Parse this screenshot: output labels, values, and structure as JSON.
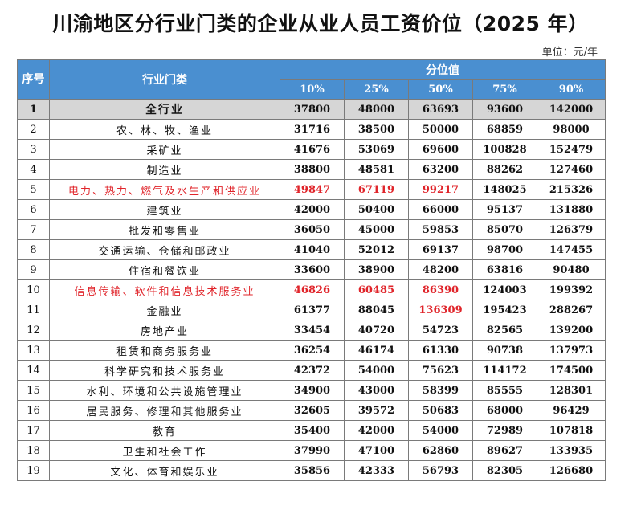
{
  "title": "川渝地区分行业门类的企业从业人员工资价位（2025 年）",
  "unit": "单位：元/年",
  "header": {
    "seq": "序号",
    "industry": "行业门类",
    "percentile_group": "分位值",
    "percentiles": [
      "10%",
      "25%",
      "50%",
      "75%",
      "90%"
    ]
  },
  "rows": [
    {
      "no": "1",
      "name": "全行业",
      "values": [
        "37800",
        "48000",
        "63693",
        "93600",
        "142000"
      ],
      "highlight": "total"
    },
    {
      "no": "2",
      "name": "农、林、牧、渔业",
      "values": [
        "31716",
        "38500",
        "50000",
        "68859",
        "98000"
      ]
    },
    {
      "no": "3",
      "name": "采矿业",
      "values": [
        "41676",
        "53069",
        "69600",
        "100828",
        "152479"
      ]
    },
    {
      "no": "4",
      "name": "制造业",
      "values": [
        "38800",
        "48581",
        "63200",
        "88262",
        "127460"
      ]
    },
    {
      "no": "5",
      "name": "电力、热力、燃气及水生产和供应业",
      "values": [
        "49847",
        "67119",
        "99217",
        "148025",
        "215326"
      ],
      "red_name": true,
      "red_values": [
        0,
        1,
        2
      ]
    },
    {
      "no": "6",
      "name": "建筑业",
      "values": [
        "42000",
        "50400",
        "66000",
        "95137",
        "131880"
      ]
    },
    {
      "no": "7",
      "name": "批发和零售业",
      "values": [
        "36050",
        "45000",
        "59853",
        "85070",
        "126379"
      ]
    },
    {
      "no": "8",
      "name": "交通运输、仓储和邮政业",
      "values": [
        "41040",
        "52012",
        "69137",
        "98700",
        "147455"
      ]
    },
    {
      "no": "9",
      "name": "住宿和餐饮业",
      "values": [
        "33600",
        "38900",
        "48200",
        "63816",
        "90480"
      ]
    },
    {
      "no": "10",
      "name": "信息传输、软件和信息技术服务业",
      "values": [
        "46826",
        "60485",
        "86390",
        "124003",
        "199392"
      ],
      "red_name": true,
      "red_values": [
        0,
        1,
        2
      ]
    },
    {
      "no": "11",
      "name": "金融业",
      "values": [
        "61377",
        "88045",
        "136309",
        "195423",
        "288267"
      ],
      "red_values": [
        2
      ]
    },
    {
      "no": "12",
      "name": "房地产业",
      "values": [
        "33454",
        "40720",
        "54723",
        "82565",
        "139200"
      ]
    },
    {
      "no": "13",
      "name": "租赁和商务服务业",
      "values": [
        "36254",
        "46174",
        "61330",
        "90738",
        "137973"
      ]
    },
    {
      "no": "14",
      "name": "科学研究和技术服务业",
      "values": [
        "42372",
        "54000",
        "75623",
        "114172",
        "174500"
      ]
    },
    {
      "no": "15",
      "name": "水利、环境和公共设施管理业",
      "values": [
        "34900",
        "43000",
        "58399",
        "85555",
        "128301"
      ]
    },
    {
      "no": "16",
      "name": "居民服务、修理和其他服务业",
      "values": [
        "32605",
        "39572",
        "50683",
        "68000",
        "96429"
      ]
    },
    {
      "no": "17",
      "name": "教育",
      "values": [
        "35400",
        "42000",
        "54000",
        "72989",
        "107818"
      ]
    },
    {
      "no": "18",
      "name": "卫生和社会工作",
      "values": [
        "37990",
        "47100",
        "62860",
        "89627",
        "133935"
      ]
    },
    {
      "no": "19",
      "name": "文化、体育和娱乐业",
      "values": [
        "35856",
        "42333",
        "56793",
        "82305",
        "126680"
      ]
    }
  ],
  "colors": {
    "header_bg": "#4a8fd0",
    "total_row_bg": "#d6d6d6",
    "highlight_red": "#e0242a"
  }
}
